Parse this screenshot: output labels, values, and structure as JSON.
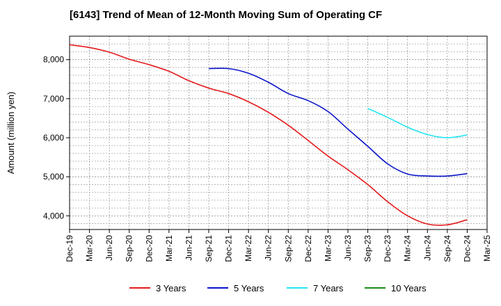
{
  "chart_data": {
    "type": "line",
    "title": "[6143]  Trend of Mean of 12-Month Moving Sum of Operating CF",
    "xlabel": "",
    "ylabel": "Amount (million yen)",
    "categories": [
      "Dec-19",
      "Mar-20",
      "Jun-20",
      "Sep-20",
      "Dec-20",
      "Mar-21",
      "Jun-21",
      "Sep-21",
      "Dec-21",
      "Mar-22",
      "Jun-22",
      "Sep-22",
      "Dec-22",
      "Mar-23",
      "Jun-23",
      "Sep-23",
      "Dec-23",
      "Mar-24",
      "Jun-24",
      "Sep-24",
      "Dec-24",
      "Mar-25"
    ],
    "ylim": [
      3650,
      8600
    ],
    "yticks": [
      4000,
      5000,
      6000,
      7000,
      8000
    ],
    "ytick_labels": [
      "4,000",
      "5,000",
      "6,000",
      "7,000",
      "8,000"
    ],
    "grid": true,
    "legend_position": "bottom",
    "series": [
      {
        "name": "3 Years",
        "color": "#e41a1c",
        "values": [
          8380,
          8310,
          8190,
          8010,
          7870,
          7700,
          7460,
          7270,
          7130,
          6920,
          6650,
          6320,
          5930,
          5530,
          5180,
          4800,
          4360,
          4000,
          3790,
          3770,
          3900,
          null
        ]
      },
      {
        "name": "5 Years",
        "color": "#0a14c8",
        "values": [
          null,
          null,
          null,
          null,
          null,
          null,
          null,
          7770,
          7770,
          7650,
          7420,
          7130,
          6950,
          6670,
          6220,
          5780,
          5330,
          5070,
          5020,
          5020,
          5080,
          null
        ]
      },
      {
        "name": "7 Years",
        "color": "#22e6f0",
        "values": [
          null,
          null,
          null,
          null,
          null,
          null,
          null,
          null,
          null,
          null,
          null,
          null,
          null,
          null,
          null,
          6750,
          6520,
          6270,
          6080,
          6000,
          6070,
          null
        ]
      },
      {
        "name": "10 Years",
        "color": "#1a8c1a",
        "values": [
          null,
          null,
          null,
          null,
          null,
          null,
          null,
          null,
          null,
          null,
          null,
          null,
          null,
          null,
          null,
          null,
          null,
          null,
          null,
          null,
          null,
          null
        ]
      }
    ]
  }
}
